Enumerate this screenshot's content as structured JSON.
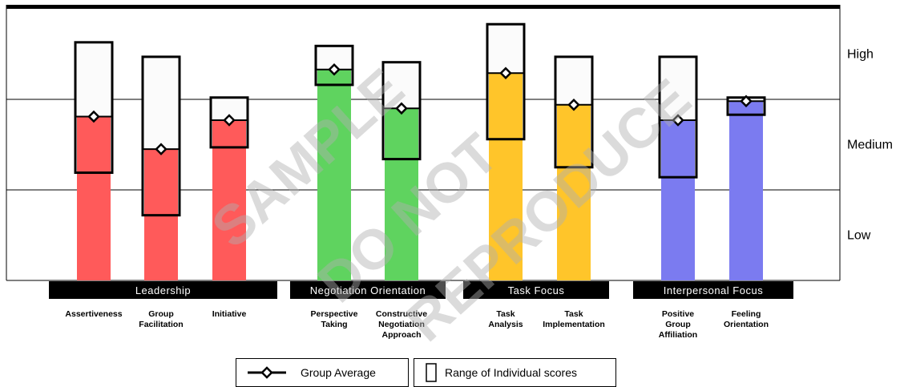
{
  "chart_data": {
    "type": "bar",
    "ylim": [
      0,
      3
    ],
    "y_levels": [
      "Low",
      "Medium",
      "High"
    ],
    "groups": [
      {
        "label": "Leadership",
        "color": "#ff5a5a",
        "categories": [
          "Assertiveness",
          "Group Facilitation",
          "Initiative"
        ]
      },
      {
        "label": "Negotiation Orientation",
        "color": "#5fd35f",
        "categories": [
          "Perspective Taking",
          "Constructive Negotiation Approach"
        ]
      },
      {
        "label": "Task Focus",
        "color": "#ffc52a",
        "categories": [
          "Task Analysis",
          "Task Implementation"
        ]
      },
      {
        "label": "Interpersonal Focus",
        "color": "#7b7bf0",
        "categories": [
          "Positive Group Affiliation",
          "Feeling Orientation"
        ]
      }
    ],
    "categories": [
      {
        "label": "Assertiveness",
        "lines": [
          "Assertiveness"
        ],
        "group": 0,
        "average": 1.81,
        "range": [
          1.19,
          2.63
        ]
      },
      {
        "label": "Group Facilitation",
        "lines": [
          "Group",
          "Facilitation"
        ],
        "group": 0,
        "average": 1.45,
        "range": [
          0.72,
          2.47
        ]
      },
      {
        "label": "Initiative",
        "lines": [
          "Initiative"
        ],
        "group": 0,
        "average": 1.77,
        "range": [
          1.47,
          2.02
        ]
      },
      {
        "label": "Perspective Taking",
        "lines": [
          "Perspective",
          "Taking"
        ],
        "group": 1,
        "average": 2.33,
        "range": [
          2.16,
          2.59
        ]
      },
      {
        "label": "Constructive Negotiation Approach",
        "lines": [
          "Constructive",
          "Negotiation",
          "Approach"
        ],
        "group": 1,
        "average": 1.9,
        "range": [
          1.34,
          2.41
        ]
      },
      {
        "label": "Task Analysis",
        "lines": [
          "Task",
          "Analysis"
        ],
        "group": 2,
        "average": 2.29,
        "range": [
          1.56,
          2.83
        ]
      },
      {
        "label": "Task Implementation",
        "lines": [
          "Task",
          "Implementation"
        ],
        "group": 2,
        "average": 1.94,
        "range": [
          1.25,
          2.47
        ]
      },
      {
        "label": "Positive Group Affiliation",
        "lines": [
          "Positive",
          "Group",
          "Affiliation"
        ],
        "group": 3,
        "average": 1.77,
        "range": [
          1.14,
          2.47
        ]
      },
      {
        "label": "Feeling Orientation",
        "lines": [
          "Feeling",
          "Orientation"
        ],
        "group": 3,
        "average": 1.98,
        "range": [
          1.83,
          2.02
        ]
      }
    ],
    "legend": [
      {
        "symbol": "diamond-line",
        "label": "Group Average"
      },
      {
        "symbol": "range-box",
        "label": "Range of Individual scores"
      }
    ],
    "watermark": [
      "SAMPLE",
      "DO NOT",
      "REPRODUCE"
    ]
  }
}
